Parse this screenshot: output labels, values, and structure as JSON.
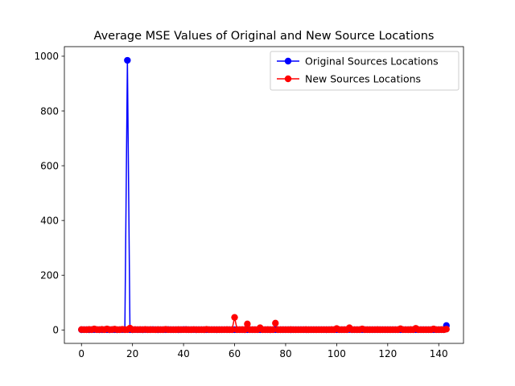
{
  "chart_data": {
    "type": "line",
    "title": "Average MSE Values of Original and New Source Locations",
    "xlabel": "",
    "ylabel": "",
    "xlim": [
      -6.7,
      149.7
    ],
    "ylim": [
      -49,
      1035
    ],
    "x_ticks": [
      0,
      20,
      40,
      60,
      80,
      100,
      120,
      140
    ],
    "y_ticks": [
      0,
      200,
      400,
      600,
      800,
      1000
    ],
    "grid": false,
    "legend_position": "top-right",
    "x_start": 0,
    "series": [
      {
        "name": "Original Sources Locations",
        "color": "#0000ff",
        "values": [
          0.9,
          1.0,
          1.0,
          0.9,
          1.0,
          1.2,
          1.1,
          0.9,
          1.0,
          1.1,
          1.0,
          0.9,
          1.2,
          1.0,
          0.8,
          1.0,
          1.1,
          1.0,
          985,
          1.0,
          0.9,
          1.1,
          1.0,
          1.0,
          0.9,
          1.1,
          1.0,
          1.0,
          1.4,
          1.0,
          0.9,
          1.1,
          1.0,
          1.0,
          1.5,
          1.0,
          1.0,
          1.1,
          0.9,
          1.0,
          1.6,
          1.3,
          1.0,
          1.0,
          1.1,
          0.9,
          1.0,
          1.0,
          1.2,
          1.0,
          1.0,
          1.1,
          1.0,
          0.9,
          1.0,
          1.0,
          1.1,
          1.0,
          1.0,
          1.0,
          1.0,
          1.1,
          1.0,
          1.0,
          0.9,
          1.0,
          1.1,
          1.0,
          1.0,
          1.0,
          1.0,
          1.2,
          1.0,
          1.0,
          0.9,
          1.0,
          1.1,
          1.0,
          1.0,
          1.0,
          1.0,
          1.1,
          0.9,
          1.0,
          1.0,
          1.0,
          1.1,
          1.0,
          1.0,
          1.0,
          1.0,
          1.0,
          1.0,
          1.1,
          1.0,
          1.0,
          0.9,
          1.0,
          1.0,
          1.0,
          1.1,
          1.0,
          1.0,
          1.0,
          1.0,
          1.4,
          1.0,
          1.0,
          1.0,
          1.0,
          1.1,
          1.0,
          1.2,
          1.0,
          1.0,
          1.0,
          1.0,
          1.0,
          1.1,
          1.0,
          1.0,
          1.0,
          1.0,
          1.0,
          1.0,
          1.0,
          1.0,
          1.1,
          1.0,
          1.0,
          1.0,
          1.3,
          1.0,
          1.0,
          1.0,
          1.0,
          1.0,
          1.0,
          1.0,
          1.0,
          1.0,
          1.2,
          1.0,
          16
        ]
      },
      {
        "name": "New Sources Locations",
        "color": "#ff0000",
        "values": [
          1.5,
          1.2,
          1.0,
          2.0,
          1.1,
          3.5,
          1.3,
          1.2,
          2.1,
          1.0,
          3.8,
          1.1,
          1.4,
          3.0,
          1.2,
          1.0,
          2.2,
          1.3,
          1.1,
          6.5,
          1.0,
          1.5,
          1.2,
          1.4,
          1.1,
          2.0,
          1.0,
          1.3,
          1.1,
          1.0,
          1.4,
          1.2,
          1.1,
          2.2,
          1.0,
          1.1,
          1.2,
          1.0,
          1.5,
          1.1,
          1.2,
          1.3,
          1.1,
          1.0,
          1.5,
          1.1,
          1.0,
          1.2,
          1.0,
          2.3,
          1.1,
          1.0,
          1.2,
          1.1,
          1.0,
          1.2,
          1.1,
          1.3,
          1.0,
          1.1,
          46,
          1.2,
          1.1,
          1.3,
          1.0,
          22,
          1.2,
          1.1,
          1.0,
          1.2,
          8,
          1.0,
          1.1,
          1.3,
          1.0,
          1.2,
          25,
          1.1,
          1.0,
          1.2,
          1.1,
          1.0,
          1.3,
          1.1,
          1.0,
          1.2,
          1.0,
          1.1,
          1.3,
          1.0,
          1.2,
          1.1,
          1.0,
          1.1,
          1.0,
          1.2,
          1.1,
          1.0,
          1.3,
          1.0,
          5,
          1.2,
          1.1,
          1.0,
          1.3,
          8,
          1.2,
          1.1,
          1.0,
          1.1,
          3.5,
          1.2,
          1.1,
          1.0,
          1.2,
          1.1,
          1.3,
          1.0,
          1.1,
          1.2,
          1.1,
          1.0,
          1.2,
          1.1,
          1.0,
          4.5,
          1.2,
          1.1,
          1.0,
          1.3,
          1.1,
          6,
          1.2,
          1.1,
          1.0,
          1.2,
          1.1,
          1.0,
          3.5,
          1.2,
          1.1,
          1.3,
          1.0,
          3.0
        ]
      }
    ]
  }
}
